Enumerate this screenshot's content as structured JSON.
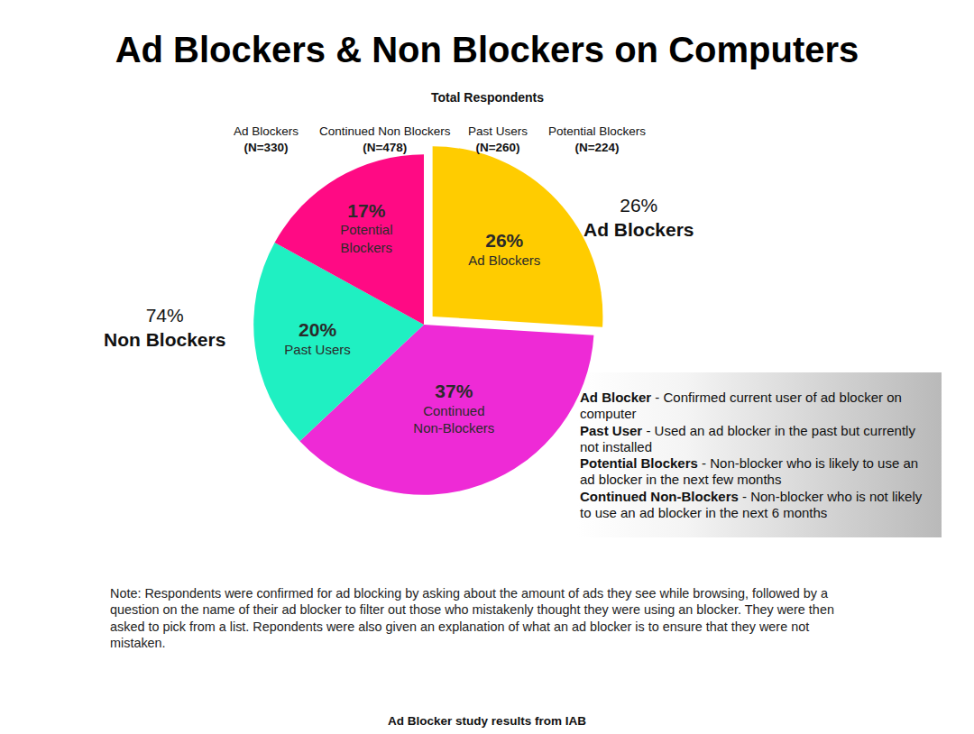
{
  "chart_data": {
    "type": "pie",
    "title": "Ad Blockers & Non Blockers on Computers",
    "subtitle": "Total Respondents",
    "categories": [
      "Ad Blockers",
      "Continued Non-Blockers",
      "Past Users",
      "Potential Blockers"
    ],
    "values": [
      26,
      37,
      20,
      17
    ],
    "value_labels": [
      "26%",
      "37%",
      "20%",
      "17%"
    ],
    "colors": [
      "#ffcc00",
      "#ee2ad6",
      "#1ff0c2",
      "#ff0a84"
    ],
    "data_labels": true,
    "sample_sizes": [
      {
        "name": "Ad Blockers",
        "value": 330,
        "label": "(N=330)"
      },
      {
        "name": "Continued Non Blockers",
        "value": 478,
        "label": "(N=478)"
      },
      {
        "name": "Past Users",
        "value": 260,
        "label": "(N=260)"
      },
      {
        "name": "Potential Blockers",
        "value": 224,
        "label": "(N=224)"
      }
    ],
    "groups": [
      {
        "name": "Ad Blockers",
        "value": 26,
        "label": "26%"
      },
      {
        "name": "Non Blockers",
        "value": 74,
        "label": "74%"
      }
    ],
    "definitions": [
      {
        "term": "Ad Blocker",
        "text": "- Confirmed current user of ad blocker on computer"
      },
      {
        "term": "Past User",
        "text": "- Used an ad blocker in the past but currently not installed"
      },
      {
        "term": "Potential Blockers",
        "text": "- Non-blocker who is likely to use an ad blocker in the next few months"
      },
      {
        "term": "Continued Non-Blockers",
        "text": "- Non-blocker who is not likely to use an ad blocker in the next 6 months"
      }
    ],
    "note": "Note: Respondents were confirmed for ad blocking by asking about the amount of ads they see while browsing, followed by a question on the name of their ad blocker to filter out those who mistakenly thought they were using an blocker. They were then asked to pick from a list. Repondents were also given an explanation of what an ad blocker is to ensure that they were not mistaken.",
    "source": "Ad Blocker study results from IAB"
  }
}
